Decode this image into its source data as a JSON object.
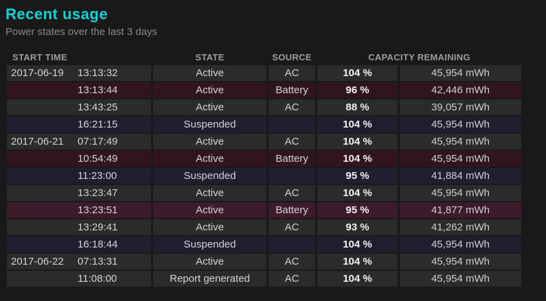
{
  "section": {
    "title": "Recent usage",
    "subtitle": "Power states over the last 3 days"
  },
  "table": {
    "headers": [
      "START TIME",
      "STATE",
      "SOURCE",
      "CAPACITY REMAINING"
    ],
    "rows": [
      {
        "date": "2017-06-19",
        "time": "13:13:32",
        "state": "Active",
        "source": "AC",
        "percent": "104 %",
        "mwh": "45,954 mWh",
        "tint": "gray"
      },
      {
        "date": "",
        "time": "13:13:44",
        "state": "Active",
        "source": "Battery",
        "percent": "96 %",
        "mwh": "42,446 mWh",
        "tint": "maroon"
      },
      {
        "date": "",
        "time": "13:43:25",
        "state": "Active",
        "source": "AC",
        "percent": "88 %",
        "mwh": "39,057 mWh",
        "tint": "gray"
      },
      {
        "date": "",
        "time": "16:21:15",
        "state": "Suspended",
        "source": "",
        "percent": "104 %",
        "mwh": "45,954 mWh",
        "tint": "navy"
      },
      {
        "date": "2017-06-21",
        "time": "07:17:49",
        "state": "Active",
        "source": "AC",
        "percent": "104 %",
        "mwh": "45,954 mWh",
        "tint": "gray"
      },
      {
        "date": "",
        "time": "10:54:49",
        "state": "Active",
        "source": "Battery",
        "percent": "104 %",
        "mwh": "45,954 mWh",
        "tint": "maroon"
      },
      {
        "date": "",
        "time": "11:23:00",
        "state": "Suspended",
        "source": "",
        "percent": "95 %",
        "mwh": "41,884 mWh",
        "tint": "navy"
      },
      {
        "date": "",
        "time": "13:23:47",
        "state": "Active",
        "source": "AC",
        "percent": "104 %",
        "mwh": "45,954 mWh",
        "tint": "gray"
      },
      {
        "date": "",
        "time": "13:23:51",
        "state": "Active",
        "source": "Battery",
        "percent": "95 %",
        "mwh": "41,877 mWh",
        "tint": "maroon_bright"
      },
      {
        "date": "",
        "time": "13:29:41",
        "state": "Active",
        "source": "AC",
        "percent": "93 %",
        "mwh": "41,262 mWh",
        "tint": "gray"
      },
      {
        "date": "",
        "time": "16:18:44",
        "state": "Suspended",
        "source": "",
        "percent": "104 %",
        "mwh": "45,954 mWh",
        "tint": "navy"
      },
      {
        "date": "2017-06-22",
        "time": "07:13:31",
        "state": "Active",
        "source": "AC",
        "percent": "104 %",
        "mwh": "45,954 mWh",
        "tint": "gray"
      },
      {
        "date": "",
        "time": "11:08:00",
        "state": "Report generated",
        "source": "AC",
        "percent": "104 %",
        "mwh": "45,954 mWh",
        "tint": "gray"
      }
    ]
  },
  "colors": {
    "page_background": "#191919",
    "title_accent": "#14d3d3",
    "row_tints": {
      "gray": "#2b2b2b",
      "maroon": "#301520",
      "maroon_bright": "#3c1b2a",
      "navy": "#201f2f"
    }
  }
}
